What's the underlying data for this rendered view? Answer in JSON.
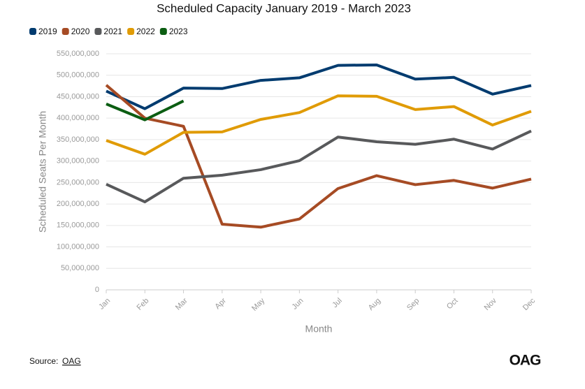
{
  "chart_data": {
    "type": "line",
    "title": "Scheduled Capacity January 2019 - March 2023",
    "x_label": "Month",
    "y_label": "Scheduled Seats Per Month",
    "categories": [
      "Jan",
      "Feb",
      "Mar",
      "Apr",
      "May",
      "Jun",
      "Jul",
      "Aug",
      "Sep",
      "Oct",
      "Nov",
      "Dec"
    ],
    "series": [
      {
        "name": "2019",
        "color": "#003b6f",
        "values": [
          463000000,
          422000000,
          470000000,
          469000000,
          488000000,
          494000000,
          523000000,
          524000000,
          491000000,
          495000000,
          456000000,
          476000000
        ]
      },
      {
        "name": "2020",
        "color": "#a64b24",
        "values": [
          477000000,
          400000000,
          381000000,
          153000000,
          146000000,
          165000000,
          236000000,
          266000000,
          245000000,
          255000000,
          237000000,
          258000000
        ]
      },
      {
        "name": "2021",
        "color": "#58595b",
        "values": [
          246000000,
          205000000,
          260000000,
          267000000,
          280000000,
          301000000,
          356000000,
          345000000,
          339000000,
          351000000,
          328000000,
          370000000
        ]
      },
      {
        "name": "2022",
        "color": "#e09b05",
        "values": [
          348000000,
          316000000,
          367000000,
          368000000,
          397000000,
          413000000,
          452000000,
          451000000,
          420000000,
          427000000,
          384000000,
          416000000
        ]
      },
      {
        "name": "2023",
        "color": "#0b5d12",
        "values": [
          433000000,
          396000000,
          440000000,
          null,
          null,
          null,
          null,
          null,
          null,
          null,
          null,
          null
        ]
      }
    ],
    "ylim": [
      0,
      550000000
    ],
    "yticks": [
      0,
      {
        "value": 50000000,
        "label": "50,000,000"
      },
      {
        "value": 100000000,
        "label": "100,000,000"
      },
      {
        "value": 150000000,
        "label": "150,000,000"
      },
      {
        "value": 200000000,
        "label": "200,000,000"
      },
      {
        "value": 250000000,
        "label": "250,000,000"
      },
      {
        "value": 300000000,
        "label": "300,000,000"
      },
      {
        "value": 350000000,
        "label": "350,000,000"
      },
      {
        "value": 400000000,
        "label": "400,000,000"
      },
      {
        "value": 450000000,
        "label": "450,000,000"
      },
      {
        "value": 500000000,
        "label": "500,000,000"
      },
      {
        "value": 550000000,
        "label": "550,000,000"
      }
    ],
    "grid": true,
    "legend": "top-left",
    "source_label": "Source:",
    "source_link": "OAG",
    "logo": "OAG"
  }
}
